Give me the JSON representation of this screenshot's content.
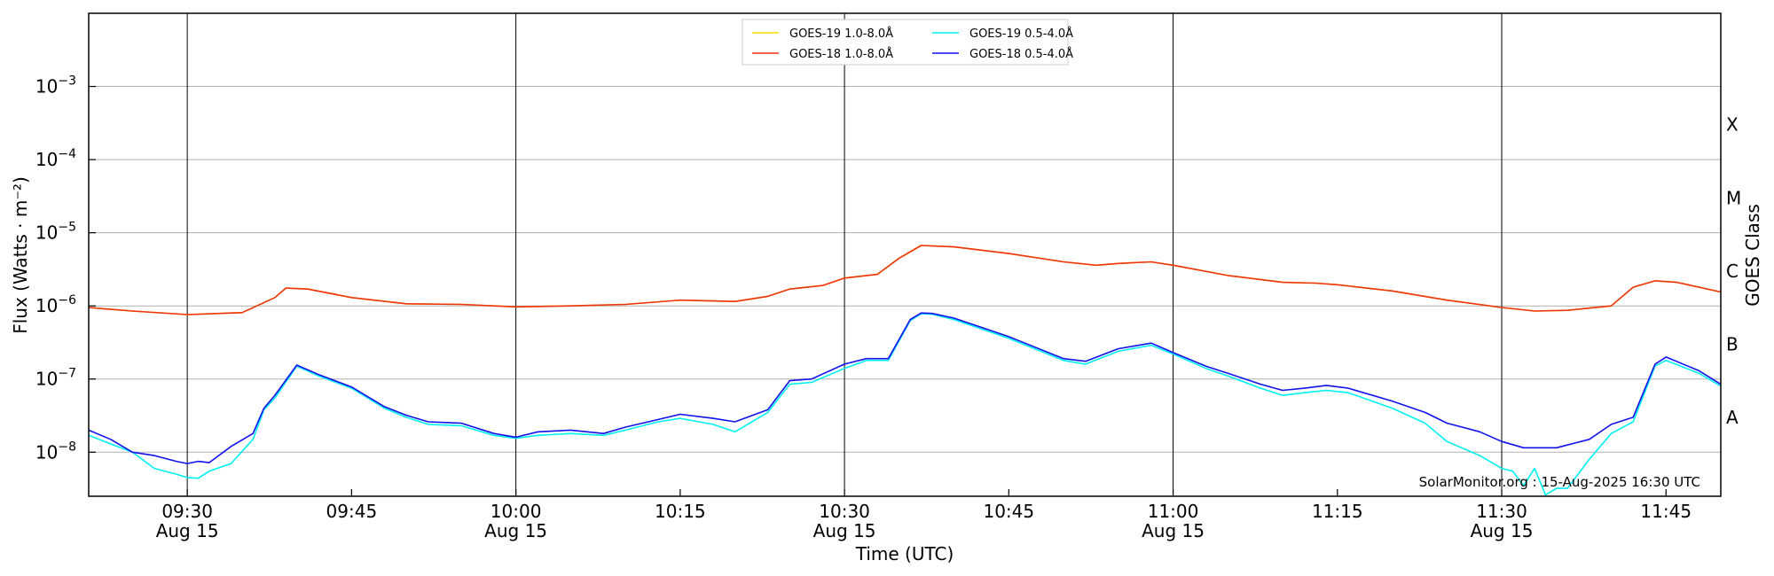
{
  "chart_data": {
    "type": "line",
    "xlabel": "Time (UTC)",
    "ylabel": "Flux (Watts · m⁻²)",
    "ylabel_right": "GOES Class",
    "y_scale": "log",
    "ylim": [
      2.5e-09,
      0.01
    ],
    "xlim": [
      "2025-08-15T09:21",
      "2025-08-15T11:50"
    ],
    "grid": "horizontal at decades; vertical at half hours",
    "legend_position": "top-center",
    "annotation": "SolarMonitor.org : 15-Aug-2025 16:30 UTC",
    "x_ticks": [
      {
        "time": "2025-08-15T09:30",
        "label": "09:30",
        "sublabel": "Aug 15"
      },
      {
        "time": "2025-08-15T09:45",
        "label": "09:45",
        "sublabel": ""
      },
      {
        "time": "2025-08-15T10:00",
        "label": "10:00",
        "sublabel": "Aug 15"
      },
      {
        "time": "2025-08-15T10:15",
        "label": "10:15",
        "sublabel": ""
      },
      {
        "time": "2025-08-15T10:30",
        "label": "10:30",
        "sublabel": "Aug 15"
      },
      {
        "time": "2025-08-15T10:45",
        "label": "10:45",
        "sublabel": ""
      },
      {
        "time": "2025-08-15T11:00",
        "label": "11:00",
        "sublabel": "Aug 15"
      },
      {
        "time": "2025-08-15T11:15",
        "label": "11:15",
        "sublabel": ""
      },
      {
        "time": "2025-08-15T11:30",
        "label": "11:30",
        "sublabel": "Aug 15"
      },
      {
        "time": "2025-08-15T11:45",
        "label": "11:45",
        "sublabel": ""
      }
    ],
    "y_ticks": [
      {
        "value": 1e-08,
        "base": "10",
        "exp": "−8"
      },
      {
        "value": 1e-07,
        "base": "10",
        "exp": "−7"
      },
      {
        "value": 1e-06,
        "base": "10",
        "exp": "−6"
      },
      {
        "value": 1e-05,
        "base": "10",
        "exp": "−5"
      },
      {
        "value": 0.0001,
        "base": "10",
        "exp": "−4"
      },
      {
        "value": 0.001,
        "base": "10",
        "exp": "−3"
      }
    ],
    "class_labels": [
      {
        "label": "A",
        "value": 3e-08
      },
      {
        "label": "B",
        "value": 3e-07
      },
      {
        "label": "C",
        "value": 3e-06
      },
      {
        "label": "M",
        "value": 3e-05
      },
      {
        "label": "X",
        "value": 0.0003
      }
    ],
    "series": [
      {
        "name": "GOES-19 1.0-8.0Å",
        "color": "#ffd700",
        "points": [
          [
            "2025-08-15T09:21",
            9.5e-07
          ],
          [
            "2025-08-15T09:25",
            8.5e-07
          ],
          [
            "2025-08-15T09:30",
            7.6e-07
          ],
          [
            "2025-08-15T09:35",
            8.1e-07
          ],
          [
            "2025-08-15T09:38",
            1.3e-06
          ],
          [
            "2025-08-15T09:39",
            1.75e-06
          ],
          [
            "2025-08-15T09:41",
            1.7e-06
          ],
          [
            "2025-08-15T09:45",
            1.3e-06
          ],
          [
            "2025-08-15T09:50",
            1.07e-06
          ],
          [
            "2025-08-15T09:55",
            1.05e-06
          ],
          [
            "2025-08-15T10:00",
            9.7e-07
          ],
          [
            "2025-08-15T10:05",
            1e-06
          ],
          [
            "2025-08-15T10:10",
            1.05e-06
          ],
          [
            "2025-08-15T10:15",
            1.2e-06
          ],
          [
            "2025-08-15T10:20",
            1.15e-06
          ],
          [
            "2025-08-15T10:23",
            1.35e-06
          ],
          [
            "2025-08-15T10:25",
            1.7e-06
          ],
          [
            "2025-08-15T10:28",
            1.9e-06
          ],
          [
            "2025-08-15T10:30",
            2.4e-06
          ],
          [
            "2025-08-15T10:33",
            2.7e-06
          ],
          [
            "2025-08-15T10:35",
            4.5e-06
          ],
          [
            "2025-08-15T10:37",
            6.7e-06
          ],
          [
            "2025-08-15T10:40",
            6.4e-06
          ],
          [
            "2025-08-15T10:45",
            5.2e-06
          ],
          [
            "2025-08-15T10:50",
            4e-06
          ],
          [
            "2025-08-15T10:53",
            3.6e-06
          ],
          [
            "2025-08-15T10:55",
            3.8e-06
          ],
          [
            "2025-08-15T10:58",
            4e-06
          ],
          [
            "2025-08-15T11:00",
            3.6e-06
          ],
          [
            "2025-08-15T11:05",
            2.6e-06
          ],
          [
            "2025-08-15T11:10",
            2.1e-06
          ],
          [
            "2025-08-15T11:13",
            2.05e-06
          ],
          [
            "2025-08-15T11:15",
            1.95e-06
          ],
          [
            "2025-08-15T11:20",
            1.6e-06
          ],
          [
            "2025-08-15T11:25",
            1.2e-06
          ],
          [
            "2025-08-15T11:30",
            9.5e-07
          ],
          [
            "2025-08-15T11:33",
            8.5e-07
          ],
          [
            "2025-08-15T11:36",
            8.7e-07
          ],
          [
            "2025-08-15T11:40",
            1e-06
          ],
          [
            "2025-08-15T11:42",
            1.8e-06
          ],
          [
            "2025-08-15T11:44",
            2.2e-06
          ],
          [
            "2025-08-15T11:46",
            2.1e-06
          ],
          [
            "2025-08-15T11:50",
            1.55e-06
          ]
        ]
      },
      {
        "name": "GOES-18 1.0-8.0Å",
        "color": "#ee3311",
        "points": [
          [
            "2025-08-15T09:21",
            9.5e-07
          ],
          [
            "2025-08-15T09:25",
            8.5e-07
          ],
          [
            "2025-08-15T09:30",
            7.6e-07
          ],
          [
            "2025-08-15T09:35",
            8.1e-07
          ],
          [
            "2025-08-15T09:38",
            1.3e-06
          ],
          [
            "2025-08-15T09:39",
            1.75e-06
          ],
          [
            "2025-08-15T09:41",
            1.7e-06
          ],
          [
            "2025-08-15T09:45",
            1.3e-06
          ],
          [
            "2025-08-15T09:50",
            1.07e-06
          ],
          [
            "2025-08-15T09:55",
            1.05e-06
          ],
          [
            "2025-08-15T10:00",
            9.7e-07
          ],
          [
            "2025-08-15T10:05",
            1e-06
          ],
          [
            "2025-08-15T10:10",
            1.05e-06
          ],
          [
            "2025-08-15T10:15",
            1.2e-06
          ],
          [
            "2025-08-15T10:20",
            1.15e-06
          ],
          [
            "2025-08-15T10:23",
            1.35e-06
          ],
          [
            "2025-08-15T10:25",
            1.7e-06
          ],
          [
            "2025-08-15T10:28",
            1.9e-06
          ],
          [
            "2025-08-15T10:30",
            2.4e-06
          ],
          [
            "2025-08-15T10:33",
            2.7e-06
          ],
          [
            "2025-08-15T10:35",
            4.5e-06
          ],
          [
            "2025-08-15T10:37",
            6.7e-06
          ],
          [
            "2025-08-15T10:40",
            6.4e-06
          ],
          [
            "2025-08-15T10:45",
            5.2e-06
          ],
          [
            "2025-08-15T10:50",
            4e-06
          ],
          [
            "2025-08-15T10:53",
            3.6e-06
          ],
          [
            "2025-08-15T10:55",
            3.8e-06
          ],
          [
            "2025-08-15T10:58",
            4e-06
          ],
          [
            "2025-08-15T11:00",
            3.6e-06
          ],
          [
            "2025-08-15T11:05",
            2.6e-06
          ],
          [
            "2025-08-15T11:10",
            2.1e-06
          ],
          [
            "2025-08-15T11:13",
            2.05e-06
          ],
          [
            "2025-08-15T11:15",
            1.95e-06
          ],
          [
            "2025-08-15T11:20",
            1.6e-06
          ],
          [
            "2025-08-15T11:25",
            1.2e-06
          ],
          [
            "2025-08-15T11:30",
            9.5e-07
          ],
          [
            "2025-08-15T11:33",
            8.5e-07
          ],
          [
            "2025-08-15T11:36",
            8.7e-07
          ],
          [
            "2025-08-15T11:40",
            1e-06
          ],
          [
            "2025-08-15T11:42",
            1.8e-06
          ],
          [
            "2025-08-15T11:44",
            2.2e-06
          ],
          [
            "2025-08-15T11:46",
            2.1e-06
          ],
          [
            "2025-08-15T11:50",
            1.55e-06
          ]
        ]
      },
      {
        "name": "GOES-19 0.5-4.0Å",
        "color": "#00f0f0",
        "points": [
          [
            "2025-08-15T09:21",
            1.7e-08
          ],
          [
            "2025-08-15T09:23",
            1.3e-08
          ],
          [
            "2025-08-15T09:25",
            1e-08
          ],
          [
            "2025-08-15T09:27",
            6e-09
          ],
          [
            "2025-08-15T09:29",
            5e-09
          ],
          [
            "2025-08-15T09:30",
            4.5e-09
          ],
          [
            "2025-08-15T09:31",
            4.4e-09
          ],
          [
            "2025-08-15T09:32",
            5.5e-09
          ],
          [
            "2025-08-15T09:34",
            7e-09
          ],
          [
            "2025-08-15T09:36",
            1.5e-08
          ],
          [
            "2025-08-15T09:37",
            3.8e-08
          ],
          [
            "2025-08-15T09:38",
            5.5e-08
          ],
          [
            "2025-08-15T09:40",
            1.5e-07
          ],
          [
            "2025-08-15T09:42",
            1.1e-07
          ],
          [
            "2025-08-15T09:45",
            7.5e-08
          ],
          [
            "2025-08-15T09:48",
            4e-08
          ],
          [
            "2025-08-15T09:50",
            3e-08
          ],
          [
            "2025-08-15T09:52",
            2.4e-08
          ],
          [
            "2025-08-15T09:55",
            2.3e-08
          ],
          [
            "2025-08-15T09:58",
            1.7e-08
          ],
          [
            "2025-08-15T10:00",
            1.55e-08
          ],
          [
            "2025-08-15T10:02",
            1.7e-08
          ],
          [
            "2025-08-15T10:05",
            1.8e-08
          ],
          [
            "2025-08-15T10:08",
            1.7e-08
          ],
          [
            "2025-08-15T10:10",
            2e-08
          ],
          [
            "2025-08-15T10:13",
            2.6e-08
          ],
          [
            "2025-08-15T10:15",
            2.9e-08
          ],
          [
            "2025-08-15T10:18",
            2.4e-08
          ],
          [
            "2025-08-15T10:20",
            1.9e-08
          ],
          [
            "2025-08-15T10:23",
            3.5e-08
          ],
          [
            "2025-08-15T10:25",
            8.5e-08
          ],
          [
            "2025-08-15T10:27",
            9e-08
          ],
          [
            "2025-08-15T10:30",
            1.4e-07
          ],
          [
            "2025-08-15T10:32",
            1.8e-07
          ],
          [
            "2025-08-15T10:34",
            1.8e-07
          ],
          [
            "2025-08-15T10:36",
            6.3e-07
          ],
          [
            "2025-08-15T10:37",
            7.8e-07
          ],
          [
            "2025-08-15T10:38",
            7.7e-07
          ],
          [
            "2025-08-15T10:40",
            6.5e-07
          ],
          [
            "2025-08-15T10:45",
            3.6e-07
          ],
          [
            "2025-08-15T10:50",
            1.8e-07
          ],
          [
            "2025-08-15T10:52",
            1.6e-07
          ],
          [
            "2025-08-15T10:55",
            2.4e-07
          ],
          [
            "2025-08-15T10:58",
            2.9e-07
          ],
          [
            "2025-08-15T11:00",
            2.2e-07
          ],
          [
            "2025-08-15T11:03",
            1.4e-07
          ],
          [
            "2025-08-15T11:05",
            1.1e-07
          ],
          [
            "2025-08-15T11:08",
            7.5e-08
          ],
          [
            "2025-08-15T11:10",
            6e-08
          ],
          [
            "2025-08-15T11:12",
            6.5e-08
          ],
          [
            "2025-08-15T11:14",
            7e-08
          ],
          [
            "2025-08-15T11:16",
            6.5e-08
          ],
          [
            "2025-08-15T11:20",
            4e-08
          ],
          [
            "2025-08-15T11:23",
            2.5e-08
          ],
          [
            "2025-08-15T11:25",
            1.4e-08
          ],
          [
            "2025-08-15T11:28",
            9e-09
          ],
          [
            "2025-08-15T11:30",
            6e-09
          ],
          [
            "2025-08-15T11:31",
            5.5e-09
          ],
          [
            "2025-08-15T11:32",
            3.5e-09
          ],
          [
            "2025-08-15T11:33",
            6e-09
          ],
          [
            "2025-08-15T11:34",
            2.6e-09
          ],
          [
            "2025-08-15T11:35",
            3.2e-09
          ],
          [
            "2025-08-15T11:36",
            3.2e-09
          ],
          [
            "2025-08-15T11:38",
            8e-09
          ],
          [
            "2025-08-15T11:40",
            1.8e-08
          ],
          [
            "2025-08-15T11:42",
            2.6e-08
          ],
          [
            "2025-08-15T11:44",
            1.5e-07
          ],
          [
            "2025-08-15T11:45",
            1.8e-07
          ],
          [
            "2025-08-15T11:48",
            1.2e-07
          ],
          [
            "2025-08-15T11:50",
            8e-08
          ]
        ]
      },
      {
        "name": "GOES-18 0.5-4.0Å",
        "color": "#1111ee",
        "points": [
          [
            "2025-08-15T09:21",
            2e-08
          ],
          [
            "2025-08-15T09:23",
            1.5e-08
          ],
          [
            "2025-08-15T09:25",
            1e-08
          ],
          [
            "2025-08-15T09:27",
            9e-09
          ],
          [
            "2025-08-15T09:29",
            7.5e-09
          ],
          [
            "2025-08-15T09:30",
            7e-09
          ],
          [
            "2025-08-15T09:31",
            7.5e-09
          ],
          [
            "2025-08-15T09:32",
            7.2e-09
          ],
          [
            "2025-08-15T09:34",
            1.2e-08
          ],
          [
            "2025-08-15T09:36",
            1.8e-08
          ],
          [
            "2025-08-15T09:37",
            4e-08
          ],
          [
            "2025-08-15T09:38",
            6e-08
          ],
          [
            "2025-08-15T09:40",
            1.55e-07
          ],
          [
            "2025-08-15T09:42",
            1.15e-07
          ],
          [
            "2025-08-15T09:45",
            7.8e-08
          ],
          [
            "2025-08-15T09:48",
            4.2e-08
          ],
          [
            "2025-08-15T09:50",
            3.2e-08
          ],
          [
            "2025-08-15T09:52",
            2.6e-08
          ],
          [
            "2025-08-15T09:55",
            2.5e-08
          ],
          [
            "2025-08-15T09:58",
            1.8e-08
          ],
          [
            "2025-08-15T10:00",
            1.6e-08
          ],
          [
            "2025-08-15T10:02",
            1.9e-08
          ],
          [
            "2025-08-15T10:05",
            2e-08
          ],
          [
            "2025-08-15T10:08",
            1.8e-08
          ],
          [
            "2025-08-15T10:10",
            2.2e-08
          ],
          [
            "2025-08-15T10:13",
            2.8e-08
          ],
          [
            "2025-08-15T10:15",
            3.3e-08
          ],
          [
            "2025-08-15T10:18",
            2.9e-08
          ],
          [
            "2025-08-15T10:20",
            2.6e-08
          ],
          [
            "2025-08-15T10:23",
            3.8e-08
          ],
          [
            "2025-08-15T10:25",
            9.5e-08
          ],
          [
            "2025-08-15T10:27",
            1e-07
          ],
          [
            "2025-08-15T10:30",
            1.6e-07
          ],
          [
            "2025-08-15T10:32",
            1.9e-07
          ],
          [
            "2025-08-15T10:34",
            1.9e-07
          ],
          [
            "2025-08-15T10:36",
            6.5e-07
          ],
          [
            "2025-08-15T10:37",
            8e-07
          ],
          [
            "2025-08-15T10:38",
            7.9e-07
          ],
          [
            "2025-08-15T10:40",
            6.8e-07
          ],
          [
            "2025-08-15T10:45",
            3.8e-07
          ],
          [
            "2025-08-15T10:50",
            1.9e-07
          ],
          [
            "2025-08-15T10:52",
            1.75e-07
          ],
          [
            "2025-08-15T10:55",
            2.6e-07
          ],
          [
            "2025-08-15T10:58",
            3.1e-07
          ],
          [
            "2025-08-15T11:00",
            2.3e-07
          ],
          [
            "2025-08-15T11:03",
            1.5e-07
          ],
          [
            "2025-08-15T11:05",
            1.2e-07
          ],
          [
            "2025-08-15T11:08",
            8.5e-08
          ],
          [
            "2025-08-15T11:10",
            7e-08
          ],
          [
            "2025-08-15T11:12",
            7.5e-08
          ],
          [
            "2025-08-15T11:14",
            8.2e-08
          ],
          [
            "2025-08-15T11:16",
            7.5e-08
          ],
          [
            "2025-08-15T11:20",
            5e-08
          ],
          [
            "2025-08-15T11:23",
            3.5e-08
          ],
          [
            "2025-08-15T11:25",
            2.5e-08
          ],
          [
            "2025-08-15T11:28",
            1.9e-08
          ],
          [
            "2025-08-15T11:30",
            1.4e-08
          ],
          [
            "2025-08-15T11:32",
            1.15e-08
          ],
          [
            "2025-08-15T11:35",
            1.15e-08
          ],
          [
            "2025-08-15T11:38",
            1.5e-08
          ],
          [
            "2025-08-15T11:40",
            2.4e-08
          ],
          [
            "2025-08-15T11:42",
            3e-08
          ],
          [
            "2025-08-15T11:44",
            1.6e-07
          ],
          [
            "2025-08-15T11:45",
            2e-07
          ],
          [
            "2025-08-15T11:48",
            1.3e-07
          ],
          [
            "2025-08-15T11:50",
            8.5e-08
          ]
        ]
      }
    ]
  }
}
